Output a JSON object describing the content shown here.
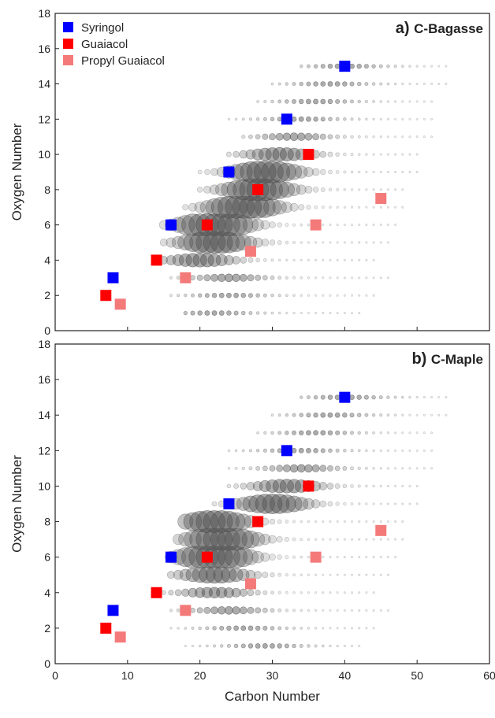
{
  "figure": {
    "xlabel": "Carbon Number",
    "ylabel": "Oxygen Number"
  },
  "legend": [
    {
      "label": "Syringol",
      "color": "#0000ff"
    },
    {
      "label": "Guaiacol",
      "color": "#ff0000"
    },
    {
      "label": "Propyl Guaiacol",
      "color": "#f47a7a"
    }
  ],
  "chart_data": [
    {
      "type": "scatter",
      "panel": "a)",
      "title": "C-Bagasse",
      "xlabel": "",
      "ylabel": "Oxygen Number",
      "xlim": [
        0,
        60
      ],
      "ylim": [
        0,
        18
      ],
      "xticks": [
        0,
        10,
        20,
        30,
        40,
        50,
        60
      ],
      "yticks": [
        0,
        2,
        4,
        6,
        8,
        10,
        12,
        14,
        16,
        18
      ],
      "grid": false,
      "legend_position": "top-left",
      "series": [
        {
          "name": "Syringol",
          "color": "#0000ff",
          "points": [
            [
              8,
              3
            ],
            [
              16,
              6
            ],
            [
              24,
              9
            ],
            [
              32,
              12
            ],
            [
              40,
              15
            ]
          ]
        },
        {
          "name": "Guaiacol",
          "color": "#ff0000",
          "points": [
            [
              7,
              2
            ],
            [
              14,
              4
            ],
            [
              21,
              6
            ],
            [
              28,
              8
            ],
            [
              35,
              10
            ]
          ]
        },
        {
          "name": "Propyl Guaiacol",
          "color": "#f47a7a",
          "points": [
            [
              9,
              1.5
            ],
            [
              18,
              3
            ],
            [
              27,
              4.5
            ],
            [
              36,
              6
            ],
            [
              45,
              7.5
            ]
          ]
        }
      ],
      "background_rows": [
        {
          "o": 1,
          "x": [
            18,
            42
          ],
          "peak": 22,
          "amp": 1
        },
        {
          "o": 2,
          "x": [
            16,
            44
          ],
          "peak": 24,
          "amp": 1
        },
        {
          "o": 3,
          "x": [
            16,
            46
          ],
          "peak": 24,
          "amp": 2
        },
        {
          "o": 4,
          "x": [
            14,
            44
          ],
          "peak": 20,
          "amp": 4
        },
        {
          "o": 5,
          "x": [
            15,
            46
          ],
          "peak": 22,
          "amp": 7
        },
        {
          "o": 6,
          "x": [
            15,
            47
          ],
          "peak": 22,
          "amp": 9
        },
        {
          "o": 7,
          "x": [
            18,
            48
          ],
          "peak": 26,
          "amp": 8
        },
        {
          "o": 8,
          "x": [
            20,
            48
          ],
          "peak": 28,
          "amp": 7
        },
        {
          "o": 9,
          "x": [
            20,
            50
          ],
          "peak": 29,
          "amp": 7
        },
        {
          "o": 10,
          "x": [
            24,
            50
          ],
          "peak": 31,
          "amp": 4
        },
        {
          "o": 11,
          "x": [
            26,
            52
          ],
          "peak": 33,
          "amp": 2
        },
        {
          "o": 12,
          "x": [
            24,
            52
          ],
          "peak": 34,
          "amp": 1
        },
        {
          "o": 13,
          "x": [
            28,
            52
          ],
          "peak": 36,
          "amp": 1
        },
        {
          "o": 14,
          "x": [
            30,
            54
          ],
          "peak": 38,
          "amp": 1
        },
        {
          "o": 15,
          "x": [
            34,
            54
          ],
          "peak": 40,
          "amp": 1
        }
      ]
    },
    {
      "type": "scatter",
      "panel": "b)",
      "title": "C-Maple",
      "xlabel": "Carbon Number",
      "ylabel": "Oxygen Number",
      "xlim": [
        0,
        60
      ],
      "ylim": [
        0,
        18
      ],
      "xticks": [
        0,
        10,
        20,
        30,
        40,
        50,
        60
      ],
      "yticks": [
        0,
        2,
        4,
        6,
        8,
        10,
        12,
        14,
        16,
        18
      ],
      "grid": false,
      "series": [
        {
          "name": "Syringol",
          "color": "#0000ff",
          "points": [
            [
              8,
              3
            ],
            [
              16,
              6
            ],
            [
              24,
              9
            ],
            [
              32,
              12
            ],
            [
              40,
              15
            ]
          ]
        },
        {
          "name": "Guaiacol",
          "color": "#ff0000",
          "points": [
            [
              7,
              2
            ],
            [
              14,
              4
            ],
            [
              21,
              6
            ],
            [
              28,
              8
            ],
            [
              35,
              10
            ]
          ]
        },
        {
          "name": "Propyl Guaiacol",
          "color": "#f47a7a",
          "points": [
            [
              9,
              1.5
            ],
            [
              18,
              3
            ],
            [
              27,
              4.5
            ],
            [
              36,
              6
            ],
            [
              45,
              7.5
            ]
          ]
        }
      ],
      "background_rows": [
        {
          "o": 1,
          "x": [
            18,
            42
          ],
          "peak": 29,
          "amp": 1
        },
        {
          "o": 2,
          "x": [
            16,
            44
          ],
          "peak": 26,
          "amp": 1
        },
        {
          "o": 3,
          "x": [
            16,
            46
          ],
          "peak": 24,
          "amp": 2
        },
        {
          "o": 4,
          "x": [
            15,
            44
          ],
          "peak": 22,
          "amp": 3
        },
        {
          "o": 5,
          "x": [
            16,
            46
          ],
          "peak": 22,
          "amp": 5
        },
        {
          "o": 6,
          "x": [
            16,
            47
          ],
          "peak": 22,
          "amp": 9
        },
        {
          "o": 7,
          "x": [
            17,
            48
          ],
          "peak": 23,
          "amp": 8
        },
        {
          "o": 8,
          "x": [
            18,
            48
          ],
          "peak": 22,
          "amp": 7
        },
        {
          "o": 9,
          "x": [
            22,
            50
          ],
          "peak": 30,
          "amp": 6
        },
        {
          "o": 10,
          "x": [
            24,
            50
          ],
          "peak": 32,
          "amp": 4
        },
        {
          "o": 11,
          "x": [
            24,
            52
          ],
          "peak": 34,
          "amp": 2
        },
        {
          "o": 12,
          "x": [
            24,
            52
          ],
          "peak": 34,
          "amp": 1
        },
        {
          "o": 13,
          "x": [
            28,
            52
          ],
          "peak": 36,
          "amp": 1
        },
        {
          "o": 14,
          "x": [
            30,
            54
          ],
          "peak": 38,
          "amp": 1
        },
        {
          "o": 15,
          "x": [
            34,
            54
          ],
          "peak": 40,
          "amp": 1
        }
      ]
    }
  ]
}
